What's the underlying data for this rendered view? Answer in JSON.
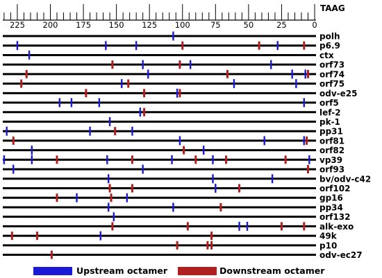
{
  "axis": {
    "end_label": "TAAG",
    "ticks": [
      225,
      200,
      175,
      150,
      125,
      100,
      75,
      50,
      25,
      0
    ],
    "min": 0,
    "max": 236
  },
  "colors": {
    "upstream": "#1a1ad6",
    "downstream": "#b01e1e",
    "gene_line": "#000000"
  },
  "legend": {
    "upstream_label": "Upstream octamer",
    "downstream_label": "Downstream octamer"
  },
  "genes": [
    {
      "name": "polh",
      "upstream": [
        107
      ],
      "downstream": []
    },
    {
      "name": "p6.9",
      "upstream": [
        225,
        158,
        135,
        28
      ],
      "downstream": [
        100,
        42,
        8
      ]
    },
    {
      "name": "ctx",
      "upstream": [
        216
      ],
      "downstream": []
    },
    {
      "name": "orf73",
      "upstream": [
        130,
        94,
        33
      ],
      "downstream": [
        153,
        102
      ]
    },
    {
      "name": "orf74",
      "upstream": [
        126,
        17,
        7
      ],
      "downstream": [
        218,
        66,
        5
      ]
    },
    {
      "name": "orf75",
      "upstream": [
        146,
        61,
        14
      ],
      "downstream": [
        222,
        141
      ]
    },
    {
      "name": "odv-e25",
      "upstream": [
        104
      ],
      "downstream": [
        173,
        129,
        102
      ]
    },
    {
      "name": "orf5",
      "upstream": [
        193,
        184,
        163,
        8
      ],
      "downstream": []
    },
    {
      "name": "lef-2",
      "upstream": [
        132
      ],
      "downstream": [
        129
      ]
    },
    {
      "name": "pk-1",
      "upstream": [
        155
      ],
      "downstream": []
    },
    {
      "name": "pp31",
      "upstream": [
        233,
        170,
        138
      ],
      "downstream": [
        151
      ]
    },
    {
      "name": "orf81",
      "upstream": [
        102,
        38,
        8
      ],
      "downstream": [
        228,
        6
      ]
    },
    {
      "name": "orf82",
      "upstream": [
        214,
        84
      ],
      "downstream": [
        99
      ]
    },
    {
      "name": "vp39",
      "upstream": [
        235,
        214,
        157,
        108,
        77,
        4
      ],
      "downstream": [
        195,
        138,
        90,
        67,
        22
      ]
    },
    {
      "name": "orf93",
      "upstream": [
        228,
        130
      ],
      "downstream": [
        5
      ]
    },
    {
      "name": "bv/odv-c42",
      "upstream": [
        156,
        77,
        32
      ],
      "downstream": []
    },
    {
      "name": "orf102",
      "upstream": [
        75
      ],
      "downstream": [
        155,
        138,
        57
      ]
    },
    {
      "name": "gp16",
      "upstream": [
        180,
        142
      ],
      "downstream": [
        195,
        154
      ]
    },
    {
      "name": "pp34",
      "upstream": [
        156,
        107
      ],
      "downstream": [
        71
      ]
    },
    {
      "name": "orf132",
      "upstream": [
        152
      ],
      "downstream": []
    },
    {
      "name": "alk-exo",
      "upstream": [
        57,
        51
      ],
      "downstream": [
        153,
        96,
        25,
        8
      ]
    },
    {
      "name": "49k",
      "upstream": [
        162
      ],
      "downstream": [
        229,
        210,
        78
      ]
    },
    {
      "name": "p10",
      "upstream": [],
      "downstream": [
        104,
        81,
        78
      ]
    },
    {
      "name": "odv-ec27",
      "upstream": [],
      "downstream": [
        199
      ]
    }
  ]
}
